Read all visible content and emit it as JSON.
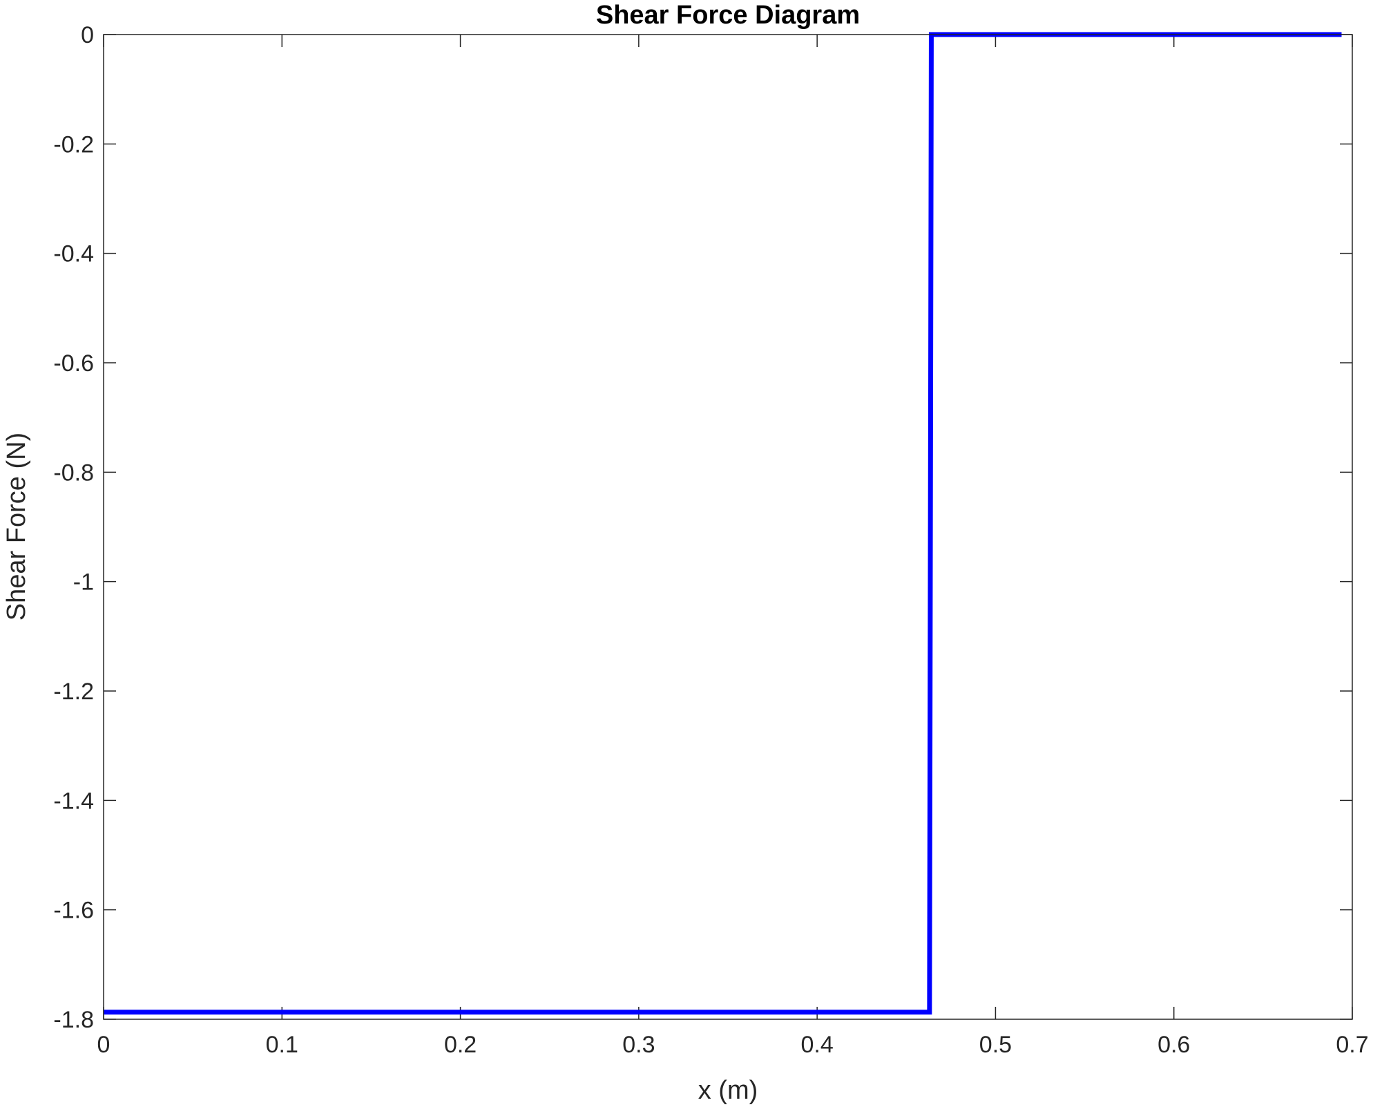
{
  "chart_data": {
    "type": "line",
    "title": "Shear Force Diagram",
    "xlabel": "x (m)",
    "ylabel": "Shear Force (N)",
    "xlim": [
      0,
      0.7
    ],
    "ylim": [
      -1.8,
      0
    ],
    "xticks": [
      0,
      0.1,
      0.2,
      0.3,
      0.4,
      0.5,
      0.6,
      0.7
    ],
    "xtick_labels": [
      "0",
      "0.1",
      "0.2",
      "0.3",
      "0.4",
      "0.5",
      "0.6",
      "0.7"
    ],
    "yticks": [
      0,
      -0.2,
      -0.4,
      -0.6,
      -0.8,
      -1,
      -1.2,
      -1.4,
      -1.6,
      -1.8
    ],
    "ytick_labels": [
      "0",
      "-0.2",
      "-0.4",
      "-0.6",
      "-0.8",
      "-1",
      "-1.2",
      "-1.4",
      "-1.6",
      "-1.8"
    ],
    "grid": false,
    "legend": "none",
    "series": [
      {
        "color": "#0000ff",
        "x": [
          0,
          0.463,
          0.464,
          0.694
        ],
        "y": [
          -1.787,
          -1.787,
          0,
          0
        ]
      }
    ]
  }
}
